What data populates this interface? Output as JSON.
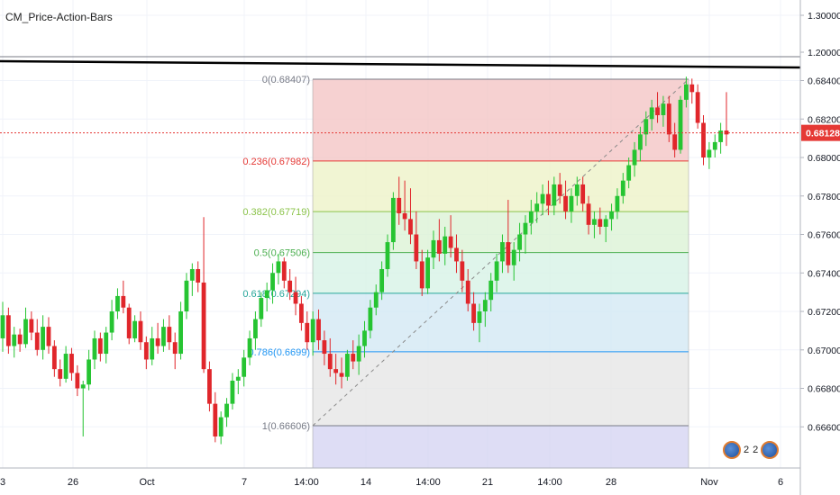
{
  "study": {
    "title": "CM_Price-Action-Bars"
  },
  "price_axis": {
    "labels": [
      "1.30000",
      "1.20000",
      "0.68400",
      "0.68200",
      "0.68000",
      "0.67800",
      "0.67600",
      "0.67400",
      "0.67200",
      "0.67000",
      "0.66800",
      "0.66600"
    ],
    "current_price": "0.68128",
    "current_price_color": "#e53935"
  },
  "time_axis": {
    "labels": [
      "3",
      "26",
      "Oct",
      "7",
      "14:00",
      "14",
      "14:00",
      "21",
      "14:00",
      "28",
      "Nov",
      "6"
    ]
  },
  "events": {
    "count_a": "2",
    "count_b": "2"
  },
  "fib_levels": [
    {
      "label": "0(0.68407)",
      "value": 0.68407,
      "color": "#787b86",
      "fill": "#f4c6c6"
    },
    {
      "label": "0.236(0.67982)",
      "value": 0.67982,
      "color": "#e53935",
      "fill": "#eef3c8"
    },
    {
      "label": "0.382(0.67719)",
      "value": 0.67719,
      "color": "#8bc34a",
      "fill": "#dcf2d6"
    },
    {
      "label": "0.5(0.67506)",
      "value": 0.67506,
      "color": "#4caf50",
      "fill": "#d7f2e6"
    },
    {
      "label": "0.618(0.67294)",
      "value": 0.67294,
      "color": "#26a69a",
      "fill": "#d3e8f4"
    },
    {
      "label": "0.786(0.6699)",
      "value": 0.6699,
      "color": "#2196f3",
      "fill": "#e6e6e6"
    },
    {
      "label": "1(0.66606)",
      "value": 0.66606,
      "color": "#787b86",
      "fill": "#d6d4f3"
    }
  ],
  "chart_data": {
    "type": "candlestick",
    "title": "CM_Price-Action-Bars",
    "y_scale": "price",
    "ylim": [
      0.6648,
      0.6852
    ],
    "upper_axis_labels": [
      1.3,
      1.2
    ],
    "current_price": 0.68128,
    "resistance_line": {
      "from": 0.6853,
      "to": 0.6848,
      "color": "#000000"
    },
    "colors": {
      "up": "#26c432",
      "down": "#e0262b",
      "neutral": "#5d6a92"
    },
    "candles": [
      [
        0.6706,
        0.6725,
        0.6699,
        0.6718
      ],
      [
        0.6718,
        0.6722,
        0.6698,
        0.6702
      ],
      [
        0.6702,
        0.6712,
        0.6696,
        0.6708
      ],
      [
        0.6708,
        0.6711,
        0.6699,
        0.6703
      ],
      [
        0.6703,
        0.6722,
        0.6701,
        0.6716
      ],
      [
        0.6716,
        0.672,
        0.6705,
        0.6709
      ],
      [
        0.6709,
        0.6716,
        0.6697,
        0.67
      ],
      [
        0.67,
        0.6718,
        0.6695,
        0.6712
      ],
      [
        0.6712,
        0.6717,
        0.6698,
        0.6702
      ],
      [
        0.6702,
        0.6705,
        0.6686,
        0.669
      ],
      [
        0.669,
        0.6695,
        0.6681,
        0.6685
      ],
      [
        0.6685,
        0.6702,
        0.6683,
        0.6698
      ],
      [
        0.6698,
        0.6701,
        0.6684,
        0.6688
      ],
      [
        0.6688,
        0.6692,
        0.6676,
        0.668
      ],
      [
        0.668,
        0.6684,
        0.6655,
        0.6682
      ],
      [
        0.6682,
        0.67,
        0.6679,
        0.6695
      ],
      [
        0.6695,
        0.671,
        0.669,
        0.6706
      ],
      [
        0.6706,
        0.6709,
        0.6694,
        0.6698
      ],
      [
        0.6698,
        0.6712,
        0.6693,
        0.6709
      ],
      [
        0.6709,
        0.6726,
        0.6705,
        0.672
      ],
      [
        0.672,
        0.6732,
        0.6716,
        0.6728
      ],
      [
        0.6728,
        0.6736,
        0.6719,
        0.6722
      ],
      [
        0.6722,
        0.6724,
        0.6703,
        0.6706
      ],
      [
        0.6706,
        0.6718,
        0.6704,
        0.6715
      ],
      [
        0.6715,
        0.672,
        0.67,
        0.6704
      ],
      [
        0.6704,
        0.6707,
        0.669,
        0.6695
      ],
      [
        0.6695,
        0.6712,
        0.6692,
        0.6706
      ],
      [
        0.6706,
        0.6714,
        0.6698,
        0.6702
      ],
      [
        0.6702,
        0.6716,
        0.6699,
        0.6712
      ],
      [
        0.6712,
        0.6718,
        0.67,
        0.6704
      ],
      [
        0.6704,
        0.6709,
        0.669,
        0.6698
      ],
      [
        0.6698,
        0.6725,
        0.6695,
        0.672
      ],
      [
        0.672,
        0.674,
        0.6716,
        0.6736
      ],
      [
        0.6736,
        0.6745,
        0.6728,
        0.6742
      ],
      [
        0.6742,
        0.6746,
        0.673,
        0.6735
      ],
      [
        0.6735,
        0.6769,
        0.6688,
        0.669
      ],
      [
        0.669,
        0.6694,
        0.6668,
        0.6672
      ],
      [
        0.6672,
        0.6678,
        0.6652,
        0.6655
      ],
      [
        0.6655,
        0.6668,
        0.6651,
        0.6665
      ],
      [
        0.6665,
        0.6675,
        0.666,
        0.6672
      ],
      [
        0.6672,
        0.6688,
        0.6669,
        0.6684
      ],
      [
        0.6684,
        0.669,
        0.6677,
        0.6686
      ],
      [
        0.6686,
        0.67,
        0.6681,
        0.6696
      ],
      [
        0.6696,
        0.671,
        0.6692,
        0.6706
      ],
      [
        0.6706,
        0.672,
        0.67,
        0.6716
      ],
      [
        0.6716,
        0.673,
        0.6712,
        0.6727
      ],
      [
        0.6727,
        0.6735,
        0.672,
        0.6731
      ],
      [
        0.6731,
        0.6745,
        0.6724,
        0.674
      ],
      [
        0.674,
        0.675,
        0.6734,
        0.6746
      ],
      [
        0.6746,
        0.6748,
        0.6732,
        0.6736
      ],
      [
        0.6736,
        0.6742,
        0.6726,
        0.673
      ],
      [
        0.673,
        0.6738,
        0.6718,
        0.6724
      ],
      [
        0.6724,
        0.6728,
        0.671,
        0.6714
      ],
      [
        0.6714,
        0.672,
        0.67,
        0.6704
      ],
      [
        0.6704,
        0.672,
        0.6697,
        0.6716
      ],
      [
        0.6716,
        0.6721,
        0.67,
        0.6705
      ],
      [
        0.6705,
        0.671,
        0.6692,
        0.6698
      ],
      [
        0.6698,
        0.6706,
        0.6686,
        0.669
      ],
      [
        0.669,
        0.6698,
        0.6682,
        0.6688
      ],
      [
        0.6688,
        0.6696,
        0.668,
        0.6686
      ],
      [
        0.6686,
        0.67,
        0.6684,
        0.6698
      ],
      [
        0.6698,
        0.6705,
        0.669,
        0.6694
      ],
      [
        0.6694,
        0.6708,
        0.6687,
        0.6702
      ],
      [
        0.6702,
        0.6715,
        0.6696,
        0.671
      ],
      [
        0.671,
        0.6726,
        0.6706,
        0.6722
      ],
      [
        0.6722,
        0.6734,
        0.6718,
        0.673
      ],
      [
        0.673,
        0.6746,
        0.6726,
        0.6742
      ],
      [
        0.6742,
        0.676,
        0.6738,
        0.6756
      ],
      [
        0.6756,
        0.6782,
        0.6752,
        0.6779
      ],
      [
        0.6779,
        0.679,
        0.6765,
        0.6771
      ],
      [
        0.6771,
        0.6788,
        0.6762,
        0.6768
      ],
      [
        0.6768,
        0.6784,
        0.6755,
        0.676
      ],
      [
        0.676,
        0.6772,
        0.6742,
        0.6746
      ],
      [
        0.6746,
        0.6752,
        0.6728,
        0.6732
      ],
      [
        0.6732,
        0.6752,
        0.6729,
        0.6748
      ],
      [
        0.6748,
        0.6762,
        0.6742,
        0.6757
      ],
      [
        0.6757,
        0.6768,
        0.6746,
        0.675
      ],
      [
        0.675,
        0.6764,
        0.6744,
        0.6759
      ],
      [
        0.6759,
        0.677,
        0.6748,
        0.6753
      ],
      [
        0.6753,
        0.676,
        0.674,
        0.6746
      ],
      [
        0.6746,
        0.6752,
        0.673,
        0.6736
      ],
      [
        0.6736,
        0.6742,
        0.672,
        0.6724
      ],
      [
        0.6724,
        0.673,
        0.671,
        0.6714
      ],
      [
        0.6714,
        0.6724,
        0.6704,
        0.672
      ],
      [
        0.672,
        0.673,
        0.6712,
        0.6726
      ],
      [
        0.6726,
        0.674,
        0.672,
        0.6736
      ],
      [
        0.6736,
        0.675,
        0.673,
        0.6746
      ],
      [
        0.6746,
        0.676,
        0.674,
        0.6756
      ],
      [
        0.6756,
        0.6778,
        0.674,
        0.6744
      ],
      [
        0.6744,
        0.6756,
        0.6736,
        0.6752
      ],
      [
        0.6752,
        0.6766,
        0.6746,
        0.676
      ],
      [
        0.676,
        0.677,
        0.675,
        0.6766
      ],
      [
        0.6766,
        0.6778,
        0.676,
        0.6772
      ],
      [
        0.6772,
        0.6782,
        0.6766,
        0.6776
      ],
      [
        0.6776,
        0.6786,
        0.677,
        0.6781
      ],
      [
        0.6781,
        0.6788,
        0.677,
        0.6775
      ],
      [
        0.6775,
        0.679,
        0.677,
        0.6786
      ],
      [
        0.6786,
        0.6792,
        0.6776,
        0.678
      ],
      [
        0.678,
        0.6788,
        0.6768,
        0.6772
      ],
      [
        0.6772,
        0.6784,
        0.6766,
        0.678
      ],
      [
        0.678,
        0.679,
        0.6775,
        0.6786
      ],
      [
        0.6786,
        0.679,
        0.6772,
        0.6776
      ],
      [
        0.6776,
        0.678,
        0.676,
        0.6765
      ],
      [
        0.6765,
        0.6772,
        0.6758,
        0.6768
      ],
      [
        0.6768,
        0.6774,
        0.676,
        0.6764
      ],
      [
        0.6764,
        0.677,
        0.6756,
        0.6768
      ],
      [
        0.6768,
        0.6776,
        0.6762,
        0.6772
      ],
      [
        0.6772,
        0.6784,
        0.6768,
        0.678
      ],
      [
        0.678,
        0.6792,
        0.6776,
        0.6788
      ],
      [
        0.6788,
        0.68,
        0.6784,
        0.6796
      ],
      [
        0.6796,
        0.6808,
        0.679,
        0.6804
      ],
      [
        0.6804,
        0.6816,
        0.6798,
        0.6812
      ],
      [
        0.6812,
        0.6824,
        0.6806,
        0.682
      ],
      [
        0.682,
        0.683,
        0.6814,
        0.6826
      ],
      [
        0.6826,
        0.6834,
        0.6818,
        0.6822
      ],
      [
        0.6822,
        0.6832,
        0.6816,
        0.6828
      ],
      [
        0.6828,
        0.6832,
        0.6808,
        0.6812
      ],
      [
        0.6812,
        0.6818,
        0.68,
        0.6804
      ],
      [
        0.6804,
        0.6832,
        0.6802,
        0.683
      ],
      [
        0.683,
        0.6842,
        0.6826,
        0.6838
      ],
      [
        0.6838,
        0.6841,
        0.6828,
        0.6834
      ],
      [
        0.6834,
        0.6838,
        0.6815,
        0.6818
      ],
      [
        0.6818,
        0.6822,
        0.6796,
        0.68
      ],
      [
        0.68,
        0.6808,
        0.6794,
        0.6804
      ],
      [
        0.6804,
        0.6812,
        0.68,
        0.6808
      ],
      [
        0.6808,
        0.6818,
        0.6802,
        0.6814
      ],
      [
        0.6814,
        0.6834,
        0.6806,
        0.6812
      ]
    ]
  }
}
